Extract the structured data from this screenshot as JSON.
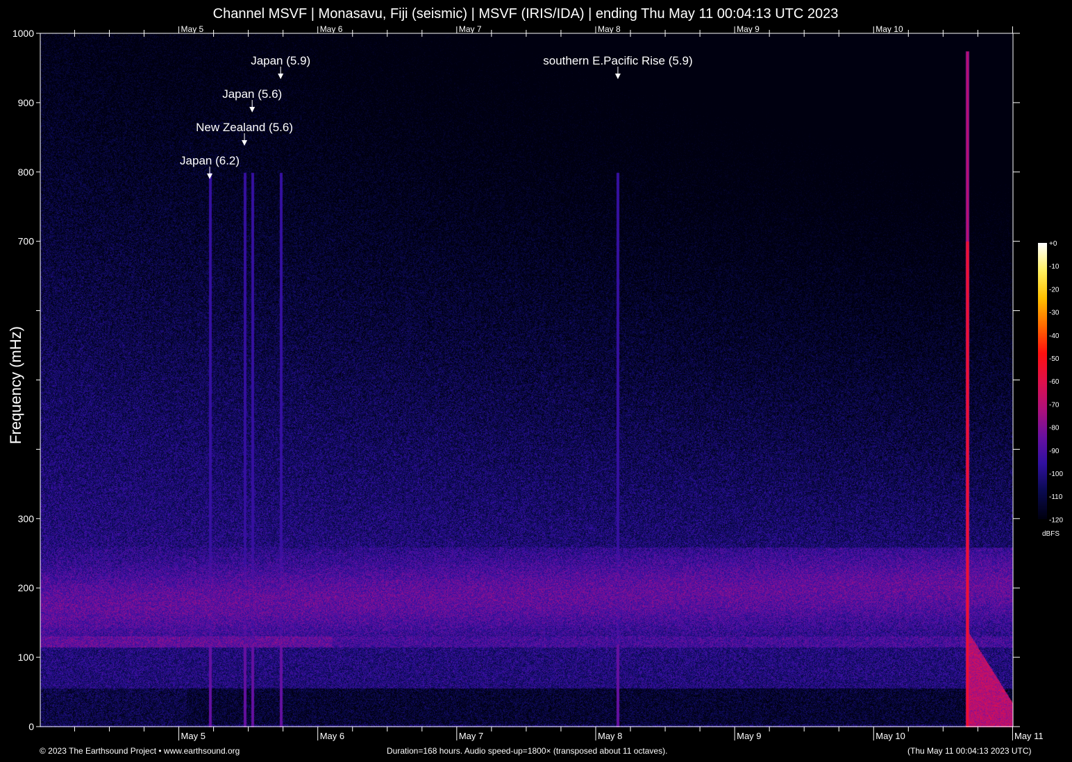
{
  "title": "Channel MSVF | Monasavu, Fiji (seismic) | MSVF (IRIS/IDA) | ending Thu May 11 00:04:13 UTC 2023",
  "footer": {
    "copyright": "© 2023 The Earthsound Project • www.earthsound.org",
    "info": "Duration=168 hours. Audio speed-up=1800× (transposed about 11 octaves).",
    "end_time": "(Thu May 11 00:04:13 2023 UTC)"
  },
  "chart_data": {
    "type": "heatmap",
    "title": "Channel MSVF | Monasavu, Fiji (seismic) | MSVF (IRIS/IDA) | ending Thu May 11 00:04:13 UTC 2023",
    "xlabel": "",
    "ylabel": "Frequency (mHz)",
    "ylim": [
      0,
      1000
    ],
    "yticks": [
      0,
      100,
      200,
      300,
      400,
      500,
      600,
      700,
      800,
      900,
      1000
    ],
    "ytick_labels": [
      "0",
      "100",
      "200",
      "300",
      "",
      "",
      "",
      "700",
      "800",
      "900",
      "1000"
    ],
    "duration_hours": 168,
    "x_tick_labels": [
      "May 5",
      "May 6",
      "May 7",
      "May 8",
      "May 9",
      "May 10"
    ],
    "x_end_label": "May 11",
    "x_end": "2023-05-11T00:04:13Z",
    "colorbar": {
      "label": "dBFS",
      "range": [
        -120,
        0
      ],
      "tick_labels": [
        "+0",
        "-10",
        "-20",
        "-30",
        "-40",
        "-50",
        "-60",
        "-70",
        "-80",
        "-90",
        "-100",
        "-110",
        "-120"
      ],
      "colors": [
        "#000010",
        "#0a0a50",
        "#3010a0",
        "#6a10a0",
        "#b0107a",
        "#e0104a",
        "#ff1010",
        "#ff6a00",
        "#ffc000",
        "#fff060",
        "#ffffff"
      ]
    },
    "grid": false,
    "events": [
      {
        "label": "Japan (6.2)",
        "time": "2023-05-05T05:20Z"
      },
      {
        "label": "New Zealand (5.6)",
        "time": "2023-05-05T11:20Z"
      },
      {
        "label": "Japan (5.6)",
        "time": "2023-05-05T12:40Z"
      },
      {
        "label": "Japan (5.9)",
        "time": "2023-05-05T17:35Z"
      },
      {
        "label": "southern E.Pacific Rise (5.9)",
        "time": "2023-05-08T03:50Z"
      }
    ]
  }
}
